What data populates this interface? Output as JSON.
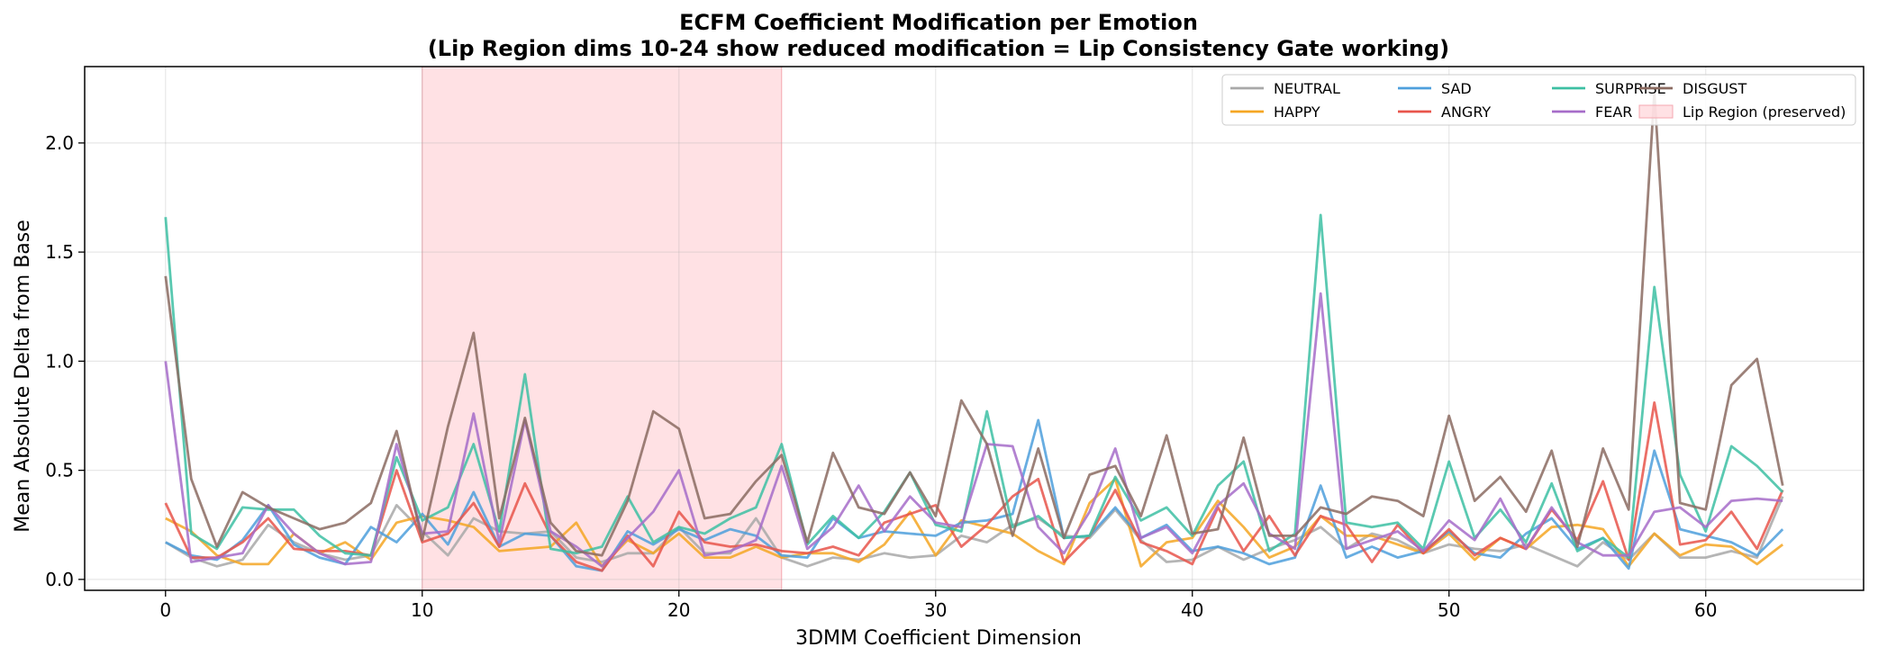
{
  "chart_data": {
    "type": "line",
    "title": "ECFM Coefficient Modification per Emotion",
    "subtitle": "(Lip Region dims 10-24 show reduced modification = Lip Consistency Gate working)",
    "xlabel": "3DMM Coefficient Dimension",
    "ylabel": "Mean Absolute Delta from Base",
    "xlim": [
      -3.15,
      66.15
    ],
    "ylim": [
      -0.05,
      2.35
    ],
    "xticks": [
      0,
      10,
      20,
      30,
      40,
      50,
      60
    ],
    "yticks": [
      0.0,
      0.5,
      1.0,
      1.5,
      2.0
    ],
    "xtick_labels": [
      "0",
      "10",
      "20",
      "30",
      "40",
      "50",
      "60"
    ],
    "ytick_labels": [
      "0.0",
      "0.5",
      "1.0",
      "1.5",
      "2.0"
    ],
    "grid": true,
    "legend_position": "top-right",
    "span": {
      "label": "Lip Region (preserved)",
      "x_start": 10,
      "x_end": 24,
      "color": "#ffcdd2"
    },
    "x": [
      0,
      1,
      2,
      3,
      4,
      5,
      6,
      7,
      8,
      9,
      10,
      11,
      12,
      13,
      14,
      15,
      16,
      17,
      18,
      19,
      20,
      21,
      22,
      23,
      24,
      25,
      26,
      27,
      28,
      29,
      30,
      31,
      32,
      33,
      34,
      35,
      36,
      37,
      38,
      39,
      40,
      41,
      42,
      43,
      44,
      45,
      46,
      47,
      48,
      49,
      50,
      51,
      52,
      53,
      54,
      55,
      56,
      57,
      58,
      59,
      60,
      61,
      62,
      63
    ],
    "series": [
      {
        "name": "NEUTRAL",
        "color": "#a8a8a8",
        "values": [
          0.17,
          0.1,
          0.06,
          0.09,
          0.25,
          0.17,
          0.12,
          0.09,
          0.11,
          0.34,
          0.22,
          0.11,
          0.28,
          0.22,
          0.21,
          0.22,
          0.1,
          0.08,
          0.12,
          0.12,
          0.24,
          0.12,
          0.12,
          0.28,
          0.1,
          0.06,
          0.1,
          0.09,
          0.12,
          0.1,
          0.11,
          0.2,
          0.17,
          0.25,
          0.28,
          0.2,
          0.19,
          0.32,
          0.18,
          0.08,
          0.09,
          0.15,
          0.09,
          0.14,
          0.18,
          0.24,
          0.14,
          0.21,
          0.18,
          0.12,
          0.16,
          0.14,
          0.13,
          0.16,
          0.11,
          0.06,
          0.17,
          0.09,
          0.21,
          0.1,
          0.1,
          0.13,
          0.1,
          0.38
        ]
      },
      {
        "name": "HAPPY",
        "color": "#f5a623",
        "values": [
          0.28,
          0.22,
          0.11,
          0.07,
          0.07,
          0.21,
          0.12,
          0.17,
          0.09,
          0.26,
          0.29,
          0.27,
          0.24,
          0.13,
          0.14,
          0.15,
          0.26,
          0.06,
          0.18,
          0.12,
          0.21,
          0.1,
          0.1,
          0.15,
          0.1,
          0.12,
          0.12,
          0.08,
          0.16,
          0.31,
          0.11,
          0.27,
          0.24,
          0.21,
          0.13,
          0.07,
          0.35,
          0.46,
          0.06,
          0.17,
          0.19,
          0.36,
          0.24,
          0.1,
          0.15,
          0.29,
          0.2,
          0.2,
          0.16,
          0.12,
          0.21,
          0.09,
          0.19,
          0.14,
          0.24,
          0.25,
          0.23,
          0.06,
          0.21,
          0.11,
          0.16,
          0.15,
          0.07,
          0.16
        ]
      },
      {
        "name": "SAD",
        "color": "#4e9fdc",
        "values": [
          0.17,
          0.11,
          0.09,
          0.18,
          0.34,
          0.16,
          0.1,
          0.07,
          0.24,
          0.17,
          0.3,
          0.16,
          0.4,
          0.15,
          0.21,
          0.2,
          0.06,
          0.04,
          0.22,
          0.16,
          0.23,
          0.18,
          0.23,
          0.2,
          0.11,
          0.1,
          0.28,
          0.19,
          0.22,
          0.21,
          0.2,
          0.26,
          0.27,
          0.3,
          0.73,
          0.19,
          0.2,
          0.33,
          0.19,
          0.25,
          0.13,
          0.15,
          0.12,
          0.07,
          0.1,
          0.43,
          0.1,
          0.15,
          0.1,
          0.13,
          0.22,
          0.12,
          0.1,
          0.21,
          0.28,
          0.14,
          0.19,
          0.05,
          0.59,
          0.23,
          0.2,
          0.17,
          0.11,
          0.23
        ]
      },
      {
        "name": "ANGRY",
        "color": "#e8554b",
        "values": [
          0.35,
          0.1,
          0.1,
          0.17,
          0.28,
          0.14,
          0.13,
          0.13,
          0.11,
          0.5,
          0.17,
          0.21,
          0.35,
          0.15,
          0.44,
          0.2,
          0.08,
          0.04,
          0.2,
          0.06,
          0.31,
          0.17,
          0.15,
          0.16,
          0.13,
          0.12,
          0.15,
          0.11,
          0.26,
          0.3,
          0.34,
          0.15,
          0.25,
          0.38,
          0.46,
          0.08,
          0.2,
          0.41,
          0.17,
          0.13,
          0.07,
          0.33,
          0.13,
          0.29,
          0.11,
          0.29,
          0.25,
          0.08,
          0.25,
          0.12,
          0.23,
          0.11,
          0.19,
          0.14,
          0.32,
          0.18,
          0.45,
          0.09,
          0.81,
          0.16,
          0.18,
          0.31,
          0.14,
          0.41
        ]
      },
      {
        "name": "SURPRISE",
        "color": "#3dbfa3",
        "values": [
          1.66,
          0.21,
          0.14,
          0.33,
          0.32,
          0.32,
          0.2,
          0.12,
          0.11,
          0.56,
          0.27,
          0.33,
          0.62,
          0.22,
          0.94,
          0.14,
          0.12,
          0.15,
          0.38,
          0.17,
          0.24,
          0.21,
          0.28,
          0.33,
          0.62,
          0.16,
          0.29,
          0.19,
          0.31,
          0.49,
          0.25,
          0.22,
          0.77,
          0.24,
          0.29,
          0.19,
          0.2,
          0.47,
          0.27,
          0.33,
          0.2,
          0.43,
          0.54,
          0.13,
          0.21,
          1.67,
          0.26,
          0.24,
          0.26,
          0.14,
          0.54,
          0.19,
          0.32,
          0.17,
          0.44,
          0.13,
          0.19,
          0.1,
          1.34,
          0.48,
          0.22,
          0.61,
          0.52,
          0.4
        ]
      },
      {
        "name": "FEAR",
        "color": "#a66cc9",
        "values": [
          1.0,
          0.08,
          0.1,
          0.12,
          0.34,
          0.21,
          0.12,
          0.07,
          0.08,
          0.62,
          0.21,
          0.22,
          0.76,
          0.17,
          0.73,
          0.22,
          0.15,
          0.06,
          0.19,
          0.31,
          0.5,
          0.11,
          0.13,
          0.18,
          0.52,
          0.14,
          0.24,
          0.43,
          0.22,
          0.38,
          0.26,
          0.24,
          0.62,
          0.61,
          0.24,
          0.12,
          0.31,
          0.6,
          0.19,
          0.24,
          0.12,
          0.34,
          0.44,
          0.21,
          0.14,
          1.31,
          0.14,
          0.18,
          0.22,
          0.13,
          0.27,
          0.18,
          0.37,
          0.14,
          0.33,
          0.17,
          0.11,
          0.11,
          0.31,
          0.33,
          0.24,
          0.36,
          0.37,
          0.36
        ]
      },
      {
        "name": "DISGUST",
        "color": "#8b6b61",
        "values": [
          1.39,
          0.46,
          0.15,
          0.4,
          0.33,
          0.28,
          0.23,
          0.26,
          0.35,
          0.68,
          0.18,
          0.7,
          1.13,
          0.28,
          0.74,
          0.26,
          0.13,
          0.11,
          0.36,
          0.77,
          0.69,
          0.28,
          0.3,
          0.45,
          0.57,
          0.17,
          0.58,
          0.33,
          0.3,
          0.49,
          0.29,
          0.82,
          0.62,
          0.2,
          0.6,
          0.19,
          0.48,
          0.52,
          0.29,
          0.66,
          0.21,
          0.23,
          0.65,
          0.2,
          0.2,
          0.33,
          0.3,
          0.38,
          0.36,
          0.29,
          0.75,
          0.36,
          0.47,
          0.31,
          0.59,
          0.15,
          0.6,
          0.32,
          2.23,
          0.35,
          0.32,
          0.89,
          1.01,
          0.43
        ]
      }
    ]
  }
}
